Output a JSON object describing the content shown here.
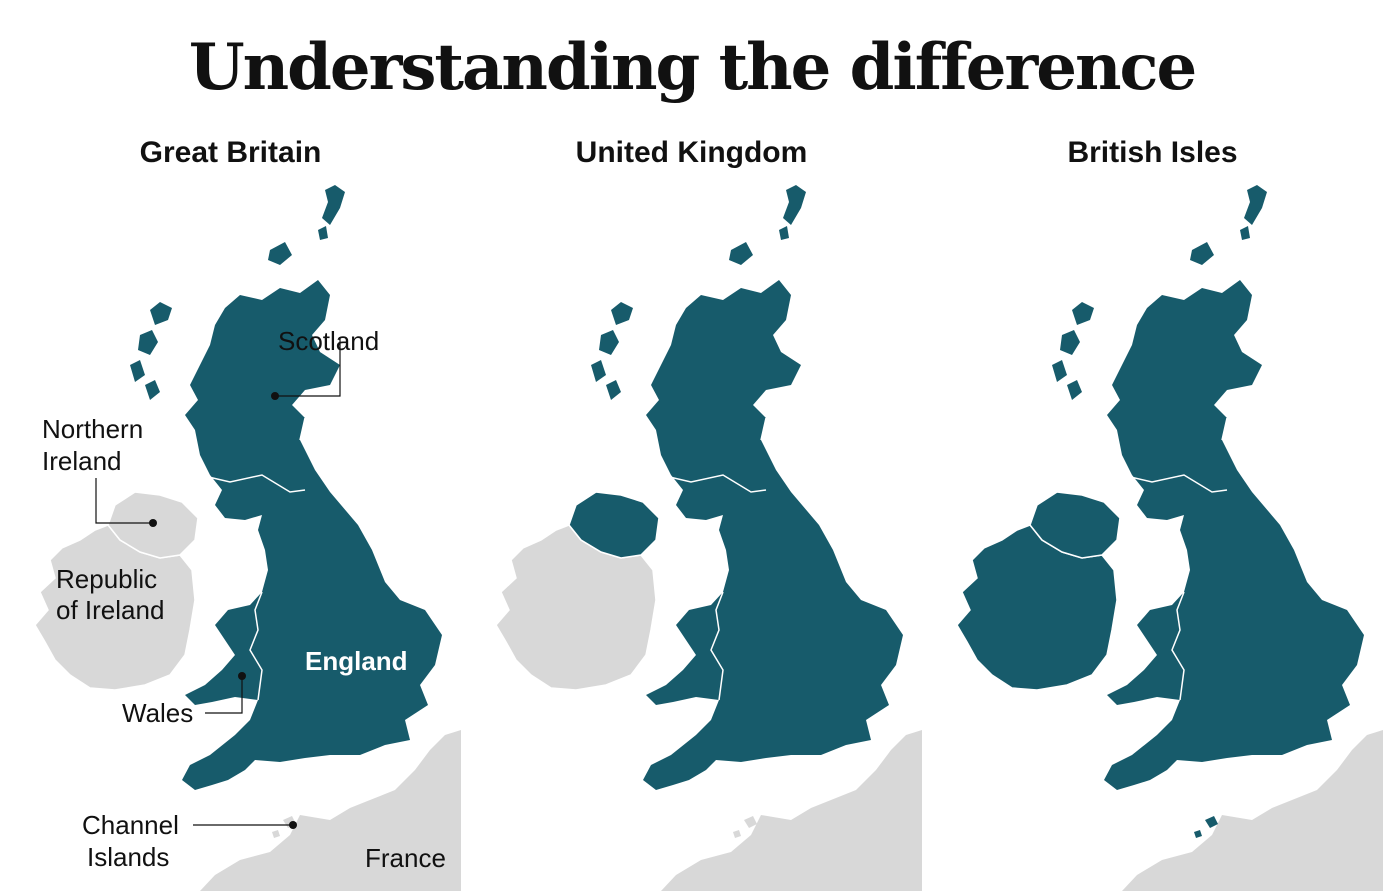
{
  "title": "Understanding the difference",
  "colors": {
    "highlight": "#175b6b",
    "other_land": "#d8d8d8",
    "border": "#ffffff",
    "text": "#111111"
  },
  "panels": [
    {
      "title": "Great Britain",
      "highlighted": [
        "Scotland",
        "England",
        "Wales"
      ],
      "labels": {
        "scotland": "Scotland",
        "northern_ireland_1": "Northern",
        "northern_ireland_2": "Ireland",
        "republic_1": "Republic",
        "republic_2": "of Ireland",
        "england": "England",
        "wales": "Wales",
        "channel_1": "Channel",
        "channel_2": "Islands",
        "france": "France"
      }
    },
    {
      "title": "United Kingdom",
      "highlighted": [
        "Scotland",
        "England",
        "Wales",
        "Northern Ireland"
      ]
    },
    {
      "title": "British Isles",
      "highlighted": [
        "Scotland",
        "England",
        "Wales",
        "Northern Ireland",
        "Republic of Ireland",
        "Channel Islands"
      ]
    }
  ]
}
